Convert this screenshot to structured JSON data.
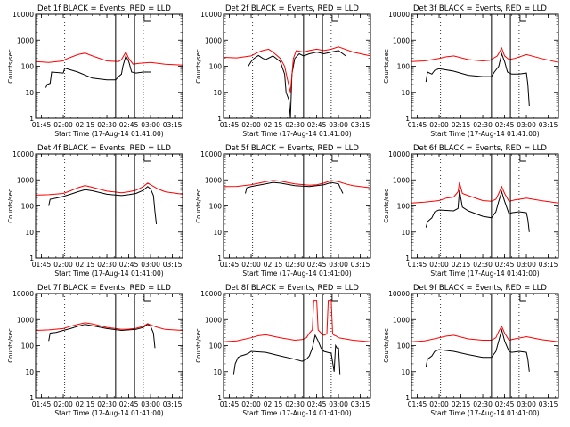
{
  "figure": {
    "xlabel": "Start Time (17-Aug-14 01:41:00)",
    "ylabel": "Counts/sec",
    "x_ticks": [
      "01:45",
      "02:00",
      "02:15",
      "02:30",
      "02:45",
      "03:00",
      "03:15"
    ],
    "y_ticks": [
      "1",
      "10",
      "100",
      "1000",
      "10000"
    ],
    "colors": {
      "events": "#000000",
      "lld": "#ff0000",
      "frame": "#000000"
    }
  },
  "chart_data": [
    {
      "type": "line",
      "title": "Det 1f BLACK = Events, RED = LLD",
      "xlabel": "Start Time (17-Aug-14 01:41:00)",
      "ylabel": "Counts/sec",
      "y_scale": "log",
      "ylim": [
        1,
        10000
      ],
      "xlim": [
        "01:41",
        "03:22"
      ],
      "dotted_markers": [
        "02:01",
        "02:55"
      ],
      "solid_markers": [
        "02:36",
        "02:49"
      ],
      "series": [
        {
          "name": "Events",
          "color": "#000000",
          "x": [
            "01:48",
            "01:49",
            "01:51",
            "01:52",
            "02:00",
            "02:01",
            "02:10",
            "02:20",
            "02:30",
            "02:36",
            "02:38",
            "02:40",
            "02:41",
            "02:43",
            "02:45",
            "02:47",
            "02:50",
            "02:55",
            "03:00"
          ],
          "y": [
            15,
            20,
            22,
            60,
            55,
            85,
            60,
            35,
            30,
            30,
            40,
            50,
            100,
            250,
            150,
            60,
            55,
            60,
            60
          ]
        },
        {
          "name": "LLD",
          "color": "#ff0000",
          "x": [
            "01:41",
            "01:50",
            "02:00",
            "02:01",
            "02:10",
            "02:15",
            "02:20",
            "02:30",
            "02:38",
            "02:40",
            "02:43",
            "02:45",
            "02:48",
            "02:52",
            "03:00",
            "03:10",
            "03:22"
          ],
          "y": [
            150,
            140,
            160,
            180,
            280,
            320,
            250,
            160,
            150,
            180,
            350,
            200,
            120,
            130,
            140,
            120,
            110
          ]
        }
      ]
    },
    {
      "type": "line",
      "title": "Det 2f BLACK = Events, RED = LLD",
      "xlabel": "Start Time (17-Aug-14 01:41:00)",
      "ylabel": "Counts/sec",
      "y_scale": "log",
      "ylim": [
        1,
        10000
      ],
      "xlim": [
        "01:41",
        "03:22"
      ],
      "dotted_markers": [
        "02:01",
        "02:55"
      ],
      "solid_markers": [
        "02:36",
        "02:49"
      ],
      "series": [
        {
          "name": "Events",
          "color": "#000000",
          "x": [
            "01:58",
            "02:00",
            "02:02",
            "02:05",
            "02:08",
            "02:10",
            "02:15",
            "02:20",
            "02:23",
            "02:24",
            "02:26",
            "02:27",
            "02:28",
            "02:30",
            "02:33",
            "02:36",
            "02:40",
            "02:45",
            "02:50",
            "02:55",
            "03:00",
            "03:05"
          ],
          "y": [
            100,
            150,
            200,
            260,
            200,
            180,
            250,
            150,
            50,
            10,
            5,
            1,
            50,
            200,
            300,
            250,
            300,
            350,
            300,
            350,
            400,
            250
          ]
        },
        {
          "name": "LLD",
          "color": "#ff0000",
          "x": [
            "01:41",
            "01:50",
            "02:00",
            "02:05",
            "02:08",
            "02:12",
            "02:15",
            "02:20",
            "02:23",
            "02:25",
            "02:27",
            "02:29",
            "02:31",
            "02:36",
            "02:40",
            "02:45",
            "02:50",
            "02:55",
            "03:00",
            "03:10",
            "03:22"
          ],
          "y": [
            220,
            210,
            250,
            350,
            400,
            450,
            350,
            200,
            100,
            30,
            10,
            200,
            400,
            350,
            400,
            450,
            400,
            450,
            550,
            350,
            250
          ]
        }
      ]
    },
    {
      "type": "line",
      "title": "Det 3f BLACK = Events, RED = LLD",
      "xlabel": "Start Time (17-Aug-14 01:41:00)",
      "ylabel": "Counts/sec",
      "y_scale": "log",
      "ylim": [
        1,
        10000
      ],
      "xlim": [
        "01:41",
        "03:22"
      ],
      "dotted_markers": [
        "02:01",
        "02:55"
      ],
      "solid_markers": [
        "02:36",
        "02:49"
      ],
      "series": [
        {
          "name": "Events",
          "color": "#000000",
          "x": [
            "01:51",
            "01:52",
            "01:55",
            "01:57",
            "02:00",
            "02:10",
            "02:20",
            "02:30",
            "02:36",
            "02:38",
            "02:41",
            "02:43",
            "02:45",
            "02:47",
            "02:50",
            "02:55",
            "03:00",
            "03:01",
            "03:02"
          ],
          "y": [
            25,
            60,
            50,
            70,
            80,
            65,
            45,
            40,
            40,
            60,
            100,
            300,
            150,
            60,
            50,
            50,
            55,
            20,
            3
          ]
        },
        {
          "name": "LLD",
          "color": "#ff0000",
          "x": [
            "01:41",
            "01:50",
            "02:00",
            "02:05",
            "02:10",
            "02:20",
            "02:30",
            "02:35",
            "02:40",
            "02:43",
            "02:45",
            "02:48",
            "02:52",
            "03:00",
            "03:10",
            "03:22"
          ],
          "y": [
            150,
            160,
            200,
            230,
            250,
            180,
            160,
            170,
            250,
            500,
            250,
            180,
            200,
            280,
            200,
            140
          ]
        }
      ]
    },
    {
      "type": "line",
      "title": "Det 4f BLACK = Events, RED = LLD",
      "xlabel": "Start Time (17-Aug-14 01:41:00)",
      "ylabel": "Counts/sec",
      "y_scale": "log",
      "ylim": [
        1,
        10000
      ],
      "xlim": [
        "01:41",
        "03:22"
      ],
      "dotted_markers": [
        "02:01",
        "02:55"
      ],
      "solid_markers": [
        "02:36",
        "02:49"
      ],
      "series": [
        {
          "name": "Events",
          "color": "#000000",
          "x": [
            "01:50",
            "01:51",
            "01:55",
            "02:00",
            "02:05",
            "02:10",
            "02:15",
            "02:20",
            "02:30",
            "02:40",
            "02:45",
            "02:50",
            "02:55",
            "02:58",
            "03:00",
            "03:02",
            "03:03",
            "03:04"
          ],
          "y": [
            100,
            180,
            200,
            230,
            280,
            350,
            420,
            380,
            280,
            250,
            270,
            300,
            400,
            550,
            450,
            250,
            60,
            20
          ]
        },
        {
          "name": "LLD",
          "color": "#ff0000",
          "x": [
            "01:41",
            "01:50",
            "02:00",
            "02:05",
            "02:10",
            "02:15",
            "02:20",
            "02:30",
            "02:40",
            "02:45",
            "02:50",
            "02:55",
            "02:58",
            "03:00",
            "03:05",
            "03:10",
            "03:22"
          ],
          "y": [
            260,
            270,
            300,
            380,
            500,
            600,
            520,
            370,
            320,
            350,
            400,
            550,
            750,
            650,
            450,
            350,
            280
          ]
        }
      ]
    },
    {
      "type": "line",
      "title": "Det 5f BLACK = Events, RED = LLD",
      "xlabel": "Start Time (17-Aug-14 01:41:00)",
      "ylabel": "Counts/sec",
      "y_scale": "log",
      "ylim": [
        1,
        10000
      ],
      "xlim": [
        "01:41",
        "03:22"
      ],
      "dotted_markers": [
        "02:01",
        "02:55"
      ],
      "solid_markers": [
        "02:36",
        "02:49"
      ],
      "series": [
        {
          "name": "Events",
          "color": "#000000",
          "x": [
            "01:56",
            "01:57",
            "02:00",
            "02:10",
            "02:15",
            "02:20",
            "02:30",
            "02:40",
            "02:45",
            "02:50",
            "02:55",
            "03:00",
            "03:02",
            "03:03"
          ],
          "y": [
            300,
            500,
            550,
            700,
            800,
            750,
            600,
            550,
            600,
            650,
            800,
            700,
            400,
            300
          ]
        },
        {
          "name": "LLD",
          "color": "#ff0000",
          "x": [
            "01:41",
            "01:50",
            "02:00",
            "02:10",
            "02:15",
            "02:20",
            "02:30",
            "02:40",
            "02:45",
            "02:50",
            "02:55",
            "03:00",
            "03:05",
            "03:10",
            "03:22"
          ],
          "y": [
            550,
            560,
            650,
            850,
            950,
            900,
            700,
            620,
            650,
            750,
            950,
            850,
            700,
            600,
            500
          ]
        }
      ]
    },
    {
      "type": "line",
      "title": "Det 6f BLACK = Events, RED = LLD",
      "xlabel": "Start Time (17-Aug-14 01:41:00)",
      "ylabel": "Counts/sec",
      "y_scale": "log",
      "ylim": [
        1,
        10000
      ],
      "xlim": [
        "01:41",
        "03:22"
      ],
      "dotted_markers": [
        "02:01",
        "02:55"
      ],
      "solid_markers": [
        "02:36",
        "02:49"
      ],
      "series": [
        {
          "name": "Events",
          "color": "#000000",
          "x": [
            "01:51",
            "01:52",
            "01:55",
            "01:57",
            "02:00",
            "02:10",
            "02:13",
            "02:14",
            "02:16",
            "02:20",
            "02:30",
            "02:36",
            "02:39",
            "02:41",
            "02:43",
            "02:45",
            "02:48",
            "02:50",
            "02:55",
            "03:00",
            "03:01",
            "03:02"
          ],
          "y": [
            15,
            25,
            35,
            60,
            70,
            65,
            80,
            400,
            90,
            65,
            40,
            35,
            60,
            150,
            350,
            150,
            50,
            55,
            60,
            55,
            30,
            10
          ]
        },
        {
          "name": "LLD",
          "color": "#ff0000",
          "x": [
            "01:41",
            "01:50",
            "02:00",
            "02:05",
            "02:10",
            "02:13",
            "02:14",
            "02:16",
            "02:20",
            "02:30",
            "02:36",
            "02:39",
            "02:41",
            "02:43",
            "02:45",
            "02:48",
            "02:52",
            "03:00",
            "03:10",
            "03:22"
          ],
          "y": [
            130,
            140,
            160,
            200,
            220,
            350,
            800,
            300,
            250,
            160,
            150,
            180,
            300,
            550,
            300,
            150,
            170,
            200,
            160,
            130
          ]
        }
      ]
    },
    {
      "type": "line",
      "title": "Det 7f BLACK = Events, RED = LLD",
      "xlabel": "Start Time (17-Aug-14 01:41:00)",
      "ylabel": "Counts/sec",
      "y_scale": "log",
      "ylim": [
        1,
        10000
      ],
      "xlim": [
        "01:41",
        "03:22"
      ],
      "dotted_markers": [
        "02:01",
        "02:55"
      ],
      "solid_markers": [
        "02:36",
        "02:49"
      ],
      "series": [
        {
          "name": "Events",
          "color": "#000000",
          "x": [
            "01:50",
            "01:51",
            "01:55",
            "02:00",
            "02:05",
            "02:10",
            "02:15",
            "02:20",
            "02:30",
            "02:40",
            "02:45",
            "02:50",
            "02:55",
            "02:58",
            "03:00",
            "03:02",
            "03:03"
          ],
          "y": [
            150,
            300,
            320,
            380,
            450,
            550,
            650,
            580,
            450,
            380,
            400,
            420,
            500,
            650,
            550,
            300,
            80
          ]
        },
        {
          "name": "LLD",
          "color": "#ff0000",
          "x": [
            "01:41",
            "01:50",
            "02:00",
            "02:05",
            "02:10",
            "02:15",
            "02:20",
            "02:30",
            "02:40",
            "02:45",
            "02:50",
            "02:55",
            "02:58",
            "03:00",
            "03:05",
            "03:10",
            "03:22"
          ],
          "y": [
            380,
            400,
            450,
            550,
            650,
            750,
            680,
            500,
            420,
            430,
            460,
            550,
            700,
            620,
            500,
            420,
            380
          ]
        }
      ]
    },
    {
      "type": "line",
      "title": "Det 8f BLACK = Events, RED = LLD",
      "xlabel": "Start Time (17-Aug-14 01:41:00)",
      "ylabel": "Counts/sec",
      "y_scale": "log",
      "ylim": [
        1,
        10000
      ],
      "xlim": [
        "01:41",
        "03:22"
      ],
      "dotted_markers": [
        "02:01",
        "02:55"
      ],
      "solid_markers": [
        "02:36",
        "02:49"
      ],
      "series": [
        {
          "name": "Events",
          "color": "#000000",
          "x": [
            "01:48",
            "01:49",
            "01:51",
            "01:53",
            "01:56",
            "01:58",
            "02:00",
            "02:10",
            "02:20",
            "02:30",
            "02:35",
            "02:38",
            "02:40",
            "02:42",
            "02:44",
            "02:46",
            "02:48",
            "02:50",
            "02:55",
            "02:57",
            "02:58",
            "02:59",
            "03:00",
            "03:01"
          ],
          "y": [
            8,
            20,
            35,
            40,
            45,
            50,
            60,
            55,
            40,
            30,
            25,
            30,
            40,
            80,
            250,
            150,
            80,
            60,
            50,
            10,
            100,
            80,
            80,
            8
          ]
        },
        {
          "name": "LLD",
          "color": "#ff0000",
          "x": [
            "01:41",
            "01:50",
            "02:00",
            "02:05",
            "02:10",
            "02:20",
            "02:30",
            "02:35",
            "02:38",
            "02:40",
            "02:42",
            "02:43",
            "02:45",
            "02:46",
            "02:48",
            "02:50",
            "02:52",
            "02:53",
            "02:54",
            "02:55",
            "02:56",
            "02:57",
            "02:58",
            "03:00",
            "03:10",
            "03:22"
          ],
          "y": [
            140,
            150,
            200,
            240,
            260,
            200,
            160,
            170,
            200,
            300,
            400,
            5500,
            5500,
            400,
            300,
            250,
            280,
            5500,
            5500,
            5500,
            280,
            250,
            240,
            200,
            160,
            140
          ]
        }
      ]
    },
    {
      "type": "line",
      "title": "Det 9f BLACK = Events, RED = LLD",
      "xlabel": "Start Time (17-Aug-14 01:41:00)",
      "ylabel": "Counts/sec",
      "y_scale": "log",
      "ylim": [
        1,
        10000
      ],
      "xlim": [
        "01:41",
        "03:22"
      ],
      "dotted_markers": [
        "02:01",
        "02:55"
      ],
      "solid_markers": [
        "02:36",
        "02:49"
      ],
      "series": [
        {
          "name": "Events",
          "color": "#000000",
          "x": [
            "01:51",
            "01:52",
            "01:55",
            "01:57",
            "02:00",
            "02:10",
            "02:20",
            "02:30",
            "02:36",
            "02:39",
            "02:41",
            "02:43",
            "02:45",
            "02:48",
            "02:50",
            "02:55",
            "03:00",
            "03:01",
            "03:02"
          ],
          "y": [
            15,
            30,
            40,
            60,
            70,
            60,
            45,
            35,
            35,
            60,
            150,
            400,
            150,
            60,
            55,
            60,
            55,
            30,
            10
          ]
        },
        {
          "name": "LLD",
          "color": "#ff0000",
          "x": [
            "01:41",
            "01:50",
            "02:00",
            "02:05",
            "02:10",
            "02:20",
            "02:30",
            "02:36",
            "02:39",
            "02:41",
            "02:43",
            "02:45",
            "02:48",
            "02:52",
            "03:00",
            "03:10",
            "03:22"
          ],
          "y": [
            140,
            150,
            200,
            230,
            250,
            180,
            160,
            160,
            200,
            350,
            550,
            300,
            160,
            180,
            220,
            170,
            140
          ]
        }
      ]
    }
  ]
}
